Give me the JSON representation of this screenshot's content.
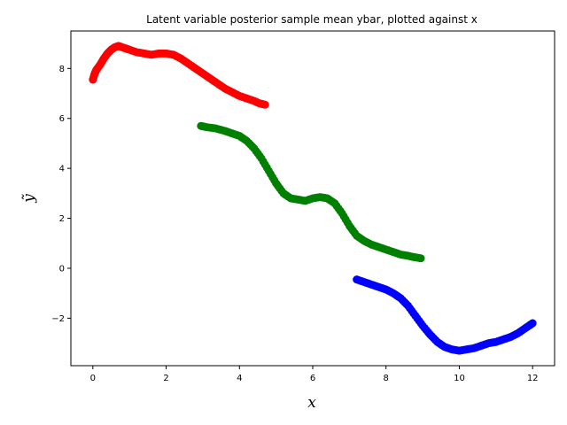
{
  "chart_data": {
    "type": "scatter",
    "title": "Latent variable posterior sample mean ybar, plotted against x",
    "xlabel": "x",
    "ylabel": "ỹ",
    "xlim": [
      -0.6,
      12.6
    ],
    "ylim": [
      -3.9,
      9.5
    ],
    "xticks": [
      0,
      2,
      4,
      6,
      8,
      10,
      12
    ],
    "yticks": [
      -2,
      0,
      2,
      4,
      6,
      8
    ],
    "xtick_labels": [
      "0",
      "2",
      "4",
      "6",
      "8",
      "10",
      "12"
    ],
    "ytick_labels": [
      "−2",
      "0",
      "2",
      "4",
      "6",
      "8"
    ],
    "grid": false,
    "legend": "none",
    "series": [
      {
        "color": "#ff0000",
        "points": [
          [
            0.0,
            7.55
          ],
          [
            0.05,
            7.8
          ],
          [
            0.1,
            7.95
          ],
          [
            0.2,
            8.15
          ],
          [
            0.3,
            8.4
          ],
          [
            0.4,
            8.6
          ],
          [
            0.5,
            8.75
          ],
          [
            0.6,
            8.85
          ],
          [
            0.7,
            8.9
          ],
          [
            0.8,
            8.85
          ],
          [
            0.9,
            8.8
          ],
          [
            1.0,
            8.75
          ],
          [
            1.2,
            8.65
          ],
          [
            1.4,
            8.6
          ],
          [
            1.6,
            8.55
          ],
          [
            1.8,
            8.6
          ],
          [
            2.0,
            8.6
          ],
          [
            2.2,
            8.55
          ],
          [
            2.4,
            8.4
          ],
          [
            2.6,
            8.2
          ],
          [
            2.8,
            8.0
          ],
          [
            3.0,
            7.8
          ],
          [
            3.2,
            7.6
          ],
          [
            3.4,
            7.4
          ],
          [
            3.6,
            7.2
          ],
          [
            3.8,
            7.05
          ],
          [
            4.0,
            6.9
          ],
          [
            4.2,
            6.8
          ],
          [
            4.4,
            6.7
          ],
          [
            4.55,
            6.6
          ],
          [
            4.7,
            6.55
          ]
        ]
      },
      {
        "color": "#008000",
        "points": [
          [
            2.95,
            5.7
          ],
          [
            3.1,
            5.65
          ],
          [
            3.35,
            5.6
          ],
          [
            3.6,
            5.5
          ],
          [
            3.8,
            5.4
          ],
          [
            4.0,
            5.3
          ],
          [
            4.2,
            5.1
          ],
          [
            4.4,
            4.8
          ],
          [
            4.6,
            4.4
          ],
          [
            4.8,
            3.9
          ],
          [
            5.0,
            3.4
          ],
          [
            5.2,
            3.0
          ],
          [
            5.4,
            2.8
          ],
          [
            5.6,
            2.75
          ],
          [
            5.8,
            2.7
          ],
          [
            6.0,
            2.8
          ],
          [
            6.2,
            2.85
          ],
          [
            6.4,
            2.8
          ],
          [
            6.6,
            2.6
          ],
          [
            6.8,
            2.2
          ],
          [
            7.0,
            1.7
          ],
          [
            7.2,
            1.3
          ],
          [
            7.4,
            1.1
          ],
          [
            7.6,
            0.95
          ],
          [
            7.8,
            0.85
          ],
          [
            8.0,
            0.75
          ],
          [
            8.2,
            0.65
          ],
          [
            8.4,
            0.55
          ],
          [
            8.6,
            0.5
          ],
          [
            8.75,
            0.45
          ],
          [
            8.95,
            0.4
          ]
        ]
      },
      {
        "color": "#0000ff",
        "points": [
          [
            7.2,
            -0.45
          ],
          [
            7.4,
            -0.55
          ],
          [
            7.6,
            -0.65
          ],
          [
            7.8,
            -0.75
          ],
          [
            8.0,
            -0.85
          ],
          [
            8.2,
            -1.0
          ],
          [
            8.4,
            -1.2
          ],
          [
            8.6,
            -1.5
          ],
          [
            8.8,
            -1.9
          ],
          [
            9.0,
            -2.3
          ],
          [
            9.2,
            -2.65
          ],
          [
            9.4,
            -2.95
          ],
          [
            9.6,
            -3.15
          ],
          [
            9.8,
            -3.25
          ],
          [
            10.0,
            -3.3
          ],
          [
            10.2,
            -3.25
          ],
          [
            10.4,
            -3.2
          ],
          [
            10.6,
            -3.1
          ],
          [
            10.8,
            -3.0
          ],
          [
            11.0,
            -2.95
          ],
          [
            11.2,
            -2.85
          ],
          [
            11.4,
            -2.75
          ],
          [
            11.6,
            -2.6
          ],
          [
            11.8,
            -2.4
          ],
          [
            11.9,
            -2.3
          ],
          [
            12.0,
            -2.2
          ]
        ]
      }
    ]
  }
}
